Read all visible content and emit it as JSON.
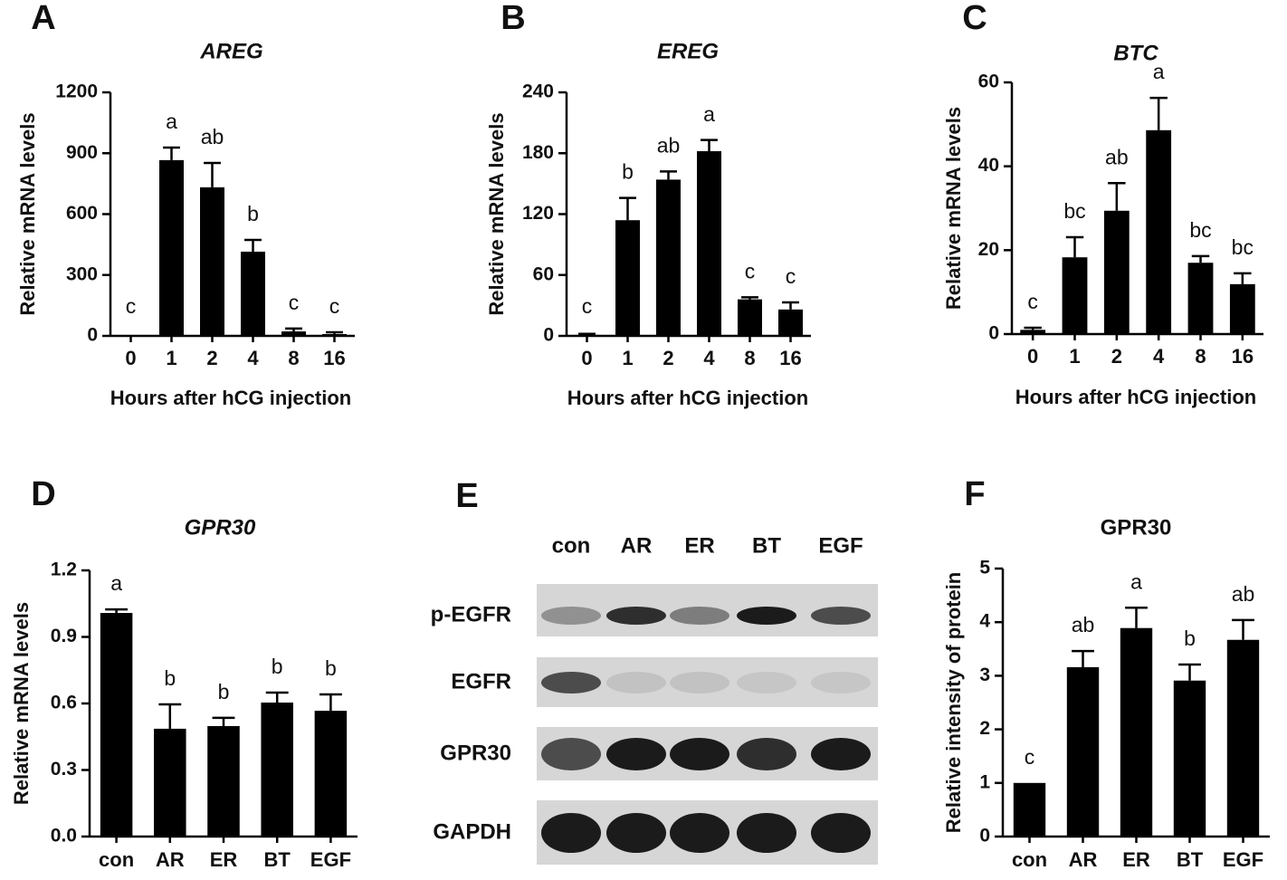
{
  "chart_data": [
    {
      "type": "bar",
      "panel": "A",
      "title": "AREG",
      "title_italic": true,
      "ylabel": "Relative mRNA levels",
      "xlabel": "Hours after hCG injection",
      "categories": [
        "0",
        "1",
        "2",
        "4",
        "8",
        "16"
      ],
      "values": [
        3,
        866,
        732,
        415,
        22,
        9
      ],
      "errors": [
        null,
        62,
        120,
        58,
        14,
        9
      ],
      "annotations": [
        "c",
        "a",
        "ab",
        "b",
        "c",
        "c"
      ],
      "color": "#000000",
      "ylim": [
        0,
        1200
      ],
      "yticks": [
        0,
        300,
        600,
        900,
        1200
      ]
    },
    {
      "type": "bar",
      "panel": "B",
      "title": "EREG",
      "title_italic": true,
      "ylabel": "Relative mRNA levels",
      "xlabel": "Hours after hCG injection",
      "categories": [
        "0",
        "1",
        "2",
        "4",
        "8",
        "16"
      ],
      "values": [
        1,
        114,
        154,
        182,
        36,
        26
      ],
      "errors": [
        1,
        22,
        8,
        11,
        2,
        7
      ],
      "annotations": [
        "c",
        "b",
        "ab",
        "a",
        "c",
        "c"
      ],
      "color": "#000000",
      "ylim": [
        0,
        240
      ],
      "yticks": [
        0,
        60,
        120,
        180,
        240
      ]
    },
    {
      "type": "bar",
      "panel": "C",
      "title": "BTC",
      "title_italic": true,
      "ylabel": "Relative mRNA levels",
      "xlabel": "Hours after hCG injection",
      "categories": [
        "0",
        "1",
        "2",
        "4",
        "8",
        "16"
      ],
      "values": [
        1,
        18.3,
        29.4,
        48.6,
        17,
        11.9
      ],
      "errors": [
        0.5,
        4.8,
        6.6,
        7.7,
        1.6,
        2.6
      ],
      "annotations": [
        "c",
        "bc",
        "ab",
        "a",
        "bc",
        "bc"
      ],
      "color": "#000000",
      "ylim": [
        0,
        60
      ],
      "yticks": [
        0,
        20,
        40,
        60
      ]
    },
    {
      "type": "bar",
      "panel": "D",
      "title": "GPR30",
      "title_italic": true,
      "ylabel": "Relative mRNA levels",
      "categories": [
        "con",
        "AR",
        "ER",
        "BT",
        "EGF"
      ],
      "values": [
        1.008,
        0.486,
        0.498,
        0.604,
        0.567
      ],
      "errors": [
        0.016,
        0.11,
        0.037,
        0.045,
        0.074
      ],
      "annotations": [
        "a",
        "b",
        "b",
        "b",
        "b"
      ],
      "color": "#000000",
      "ylim": [
        0,
        1.2
      ],
      "yticks": [
        {
          "value": 0,
          "label": "0.0"
        },
        0.3,
        0.6,
        0.9,
        1.2
      ]
    },
    {
      "type": "bar",
      "panel": "F",
      "title": "GPR30",
      "title_italic": false,
      "ylabel": "Relative intensity of protein",
      "categories": [
        "con",
        "AR",
        "ER",
        "BT",
        "EGF"
      ],
      "values": [
        1,
        3.16,
        3.89,
        2.91,
        3.67
      ],
      "errors": [
        null,
        0.3,
        0.38,
        0.3,
        0.37
      ],
      "annotations": [
        "c",
        "ab",
        "a",
        "b",
        "ab"
      ],
      "color": "#000000",
      "ylim": [
        0,
        5
      ],
      "yticks": [
        0,
        1,
        2,
        3,
        4,
        5
      ]
    }
  ],
  "blot": {
    "panel": "E",
    "columns": [
      "con",
      "AR",
      "ER",
      "BT",
      "EGF"
    ],
    "rows": [
      "p-EGFR",
      "EGFR",
      "GPR30",
      "GAPDH"
    ]
  }
}
